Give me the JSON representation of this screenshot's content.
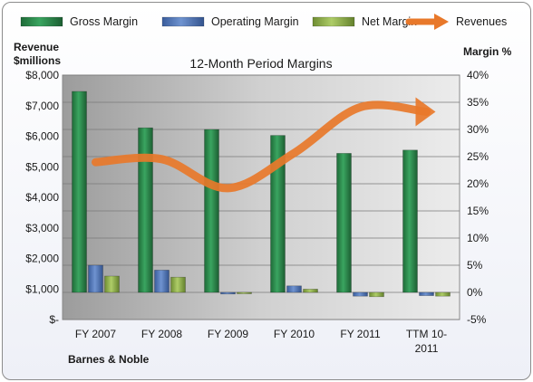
{
  "chart_data": {
    "type": "bar",
    "title": "12-Month Period Margins",
    "company": "Barnes & Noble",
    "left_axis": {
      "label_line1": "Revenue",
      "label_line2": "$millions",
      "min": 0,
      "max": 8000,
      "step": 1000,
      "tick_labels": [
        "$-",
        "$1,000",
        "$2,000",
        "$3,000",
        "$4,000",
        "$5,000",
        "$6,000",
        "$7,000",
        "$8,000"
      ]
    },
    "right_axis": {
      "label": "Margin %",
      "min": -5,
      "max": 40,
      "step": 5,
      "tick_labels": [
        "-5%",
        "0%",
        "5%",
        "10%",
        "15%",
        "20%",
        "25%",
        "30%",
        "35%",
        "40%"
      ]
    },
    "categories": [
      {
        "line1": "FY 2007",
        "line2": ""
      },
      {
        "line1": "FY 2008",
        "line2": ""
      },
      {
        "line1": "FY 2009",
        "line2": ""
      },
      {
        "line1": "FY 2010",
        "line2": ""
      },
      {
        "line1": "FY 2011",
        "line2": ""
      },
      {
        "line1": "TTM 10-",
        "line2": "2011"
      }
    ],
    "series": [
      {
        "name": "Gross Margin",
        "color": "#2e8b4c",
        "axis": "right",
        "values": [
          37.0,
          30.3,
          30.0,
          28.9,
          25.6,
          26.2
        ]
      },
      {
        "name": "Operating Margin",
        "color": "#4f74b8",
        "axis": "right",
        "values": [
          5.0,
          4.1,
          -0.3,
          1.2,
          -0.7,
          -0.6
        ]
      },
      {
        "name": "Net Margin",
        "color": "#8fb04a",
        "axis": "right",
        "values": [
          3.0,
          2.8,
          -0.2,
          0.6,
          -0.8,
          -0.7
        ]
      }
    ],
    "revenue_series": {
      "name": "Revenues",
      "color": "#e8782a",
      "axis": "left",
      "values": [
        5150,
        5250,
        4300,
        5450,
        6950,
        6800
      ]
    },
    "grid": true,
    "legend_position": "top"
  }
}
